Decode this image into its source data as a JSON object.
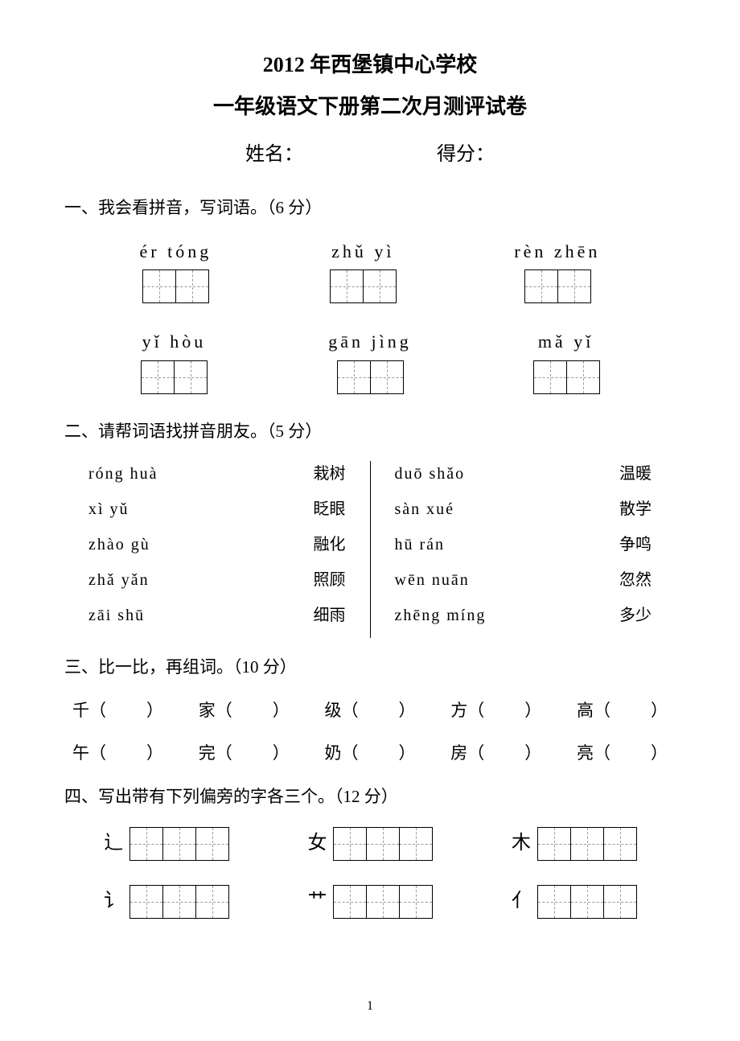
{
  "title_main": "2012 年西堡镇中心学校",
  "title_sub": "一年级语文下册第二次月测评试卷",
  "name_label": "姓名：",
  "score_label": "得分：",
  "section1": {
    "header": "一、我会看拼音，写词语。（6 分）",
    "row1": [
      {
        "pinyin": "ér  tóng"
      },
      {
        "pinyin": "zhǔ  yì"
      },
      {
        "pinyin": "rèn  zhēn"
      }
    ],
    "row2": [
      {
        "pinyin": "yǐ  hòu"
      },
      {
        "pinyin": "gān  jìng"
      },
      {
        "pinyin": "mǎ  yǐ"
      }
    ]
  },
  "section2": {
    "header": "二、请帮词语找拼音朋友。（5 分）",
    "left": [
      {
        "pinyin": "róng huà",
        "word": "栽树"
      },
      {
        "pinyin": "xì  yǔ",
        "word": "眨眼"
      },
      {
        "pinyin": "zhào gù",
        "word": "融化"
      },
      {
        "pinyin": "zhǎ  yǎn",
        "word": "照顾"
      },
      {
        "pinyin": "zāi  shū",
        "word": "细雨"
      }
    ],
    "right": [
      {
        "pinyin": "duō  shǎo",
        "word": "温暖"
      },
      {
        "pinyin": "sàn  xué",
        "word": "散学"
      },
      {
        "pinyin": "hū  rán",
        "word": "争鸣"
      },
      {
        "pinyin": "wēn nuān",
        "word": "忽然"
      },
      {
        "pinyin": "zhēng  míng",
        "word": "多少"
      }
    ]
  },
  "section3": {
    "header": "三、比一比，再组词。（10 分）",
    "row1": [
      "千",
      "家",
      "级",
      "方",
      "高"
    ],
    "row2": [
      "午",
      "完",
      "奶",
      "房",
      "亮"
    ]
  },
  "section4": {
    "header": "四、写出带有下列偏旁的字各三个。（12 分）",
    "row1": [
      "辶",
      "女",
      "木"
    ],
    "row2": [
      "讠",
      "艹",
      "亻"
    ]
  },
  "page_number": "1"
}
